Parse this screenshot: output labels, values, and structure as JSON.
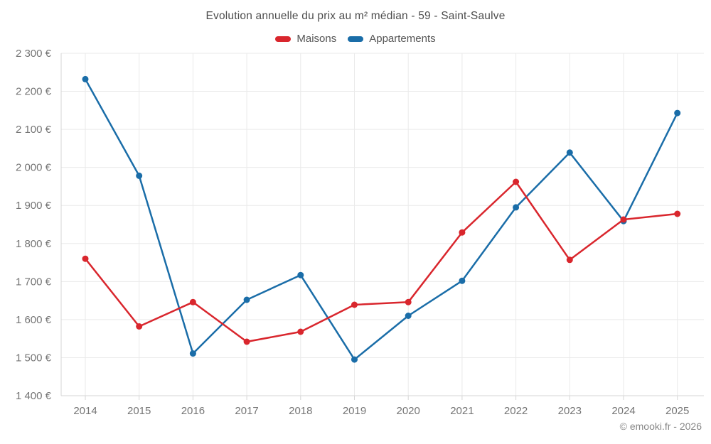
{
  "page": {
    "copyright": "© emooki.fr - 2026"
  },
  "chart_data": {
    "type": "line",
    "title": "Evolution annuelle du prix au m² médian - 59 - Saint-Saulve",
    "x": [
      2014,
      2015,
      2016,
      2017,
      2018,
      2019,
      2020,
      2021,
      2022,
      2023,
      2024,
      2025
    ],
    "x_tick_labels": [
      "2014",
      "2015",
      "2016",
      "2017",
      "2018",
      "2019",
      "2020",
      "2021",
      "2022",
      "2023",
      "2024",
      "2025"
    ],
    "series": [
      {
        "name": "Maisons",
        "color": "#d9262d",
        "values": [
          1760,
          1582,
          1646,
          1542,
          1568,
          1639,
          1646,
          1829,
          1962,
          1757,
          1863,
          1878
        ]
      },
      {
        "name": "Appartements",
        "color": "#1a6da8",
        "values": [
          2232,
          1978,
          1511,
          1652,
          1717,
          1495,
          1610,
          1702,
          1895,
          2039,
          1859,
          2143
        ]
      }
    ],
    "ylabel": "",
    "xlabel": "",
    "ylim": [
      1400,
      2300
    ],
    "y_tick_step": 100,
    "y_tick_labels": [
      "1 400 €",
      "1 500 €",
      "1 600 €",
      "1 700 €",
      "1 800 €",
      "1 900 €",
      "2 000 €",
      "2 100 €",
      "2 200 €",
      "2 300 €"
    ],
    "grid": true,
    "legend_position": "top",
    "colors": {
      "axis_line": "#d6d6d6",
      "gridline": "#eaeaea",
      "tick_label": "#757575",
      "title_text": "#4d4d4d",
      "legend_text": "#555555",
      "copyright_text": "#878787",
      "background": "#ffffff"
    }
  }
}
